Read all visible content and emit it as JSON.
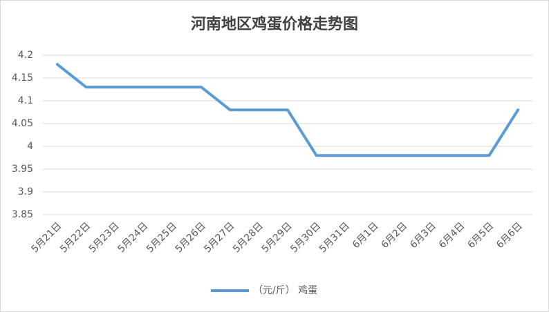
{
  "chart_data": {
    "type": "line",
    "title": "河南地区鸡蛋价格走势图",
    "categories": [
      "5月21日",
      "5月22日",
      "5月23日",
      "5月24日",
      "5月25日",
      "5月26日",
      "5月27日",
      "5月28日",
      "5月29日",
      "5月30日",
      "5月31日",
      "6月1日",
      "6月2日",
      "6月3日",
      "6月4日",
      "6月5日",
      "6月6日"
    ],
    "series": [
      {
        "name": "（元/斤） 鸡蛋",
        "color": "#5b9bd5",
        "values": [
          4.18,
          4.13,
          4.13,
          4.13,
          4.13,
          4.13,
          4.08,
          4.08,
          4.08,
          3.98,
          3.98,
          3.98,
          3.98,
          3.98,
          3.98,
          3.98,
          4.08
        ]
      }
    ],
    "ylim": [
      3.85,
      4.2
    ],
    "yticks": [
      4.2,
      4.15,
      4.1,
      4.05,
      4,
      3.95,
      3.9,
      3.85
    ],
    "grid": true
  }
}
